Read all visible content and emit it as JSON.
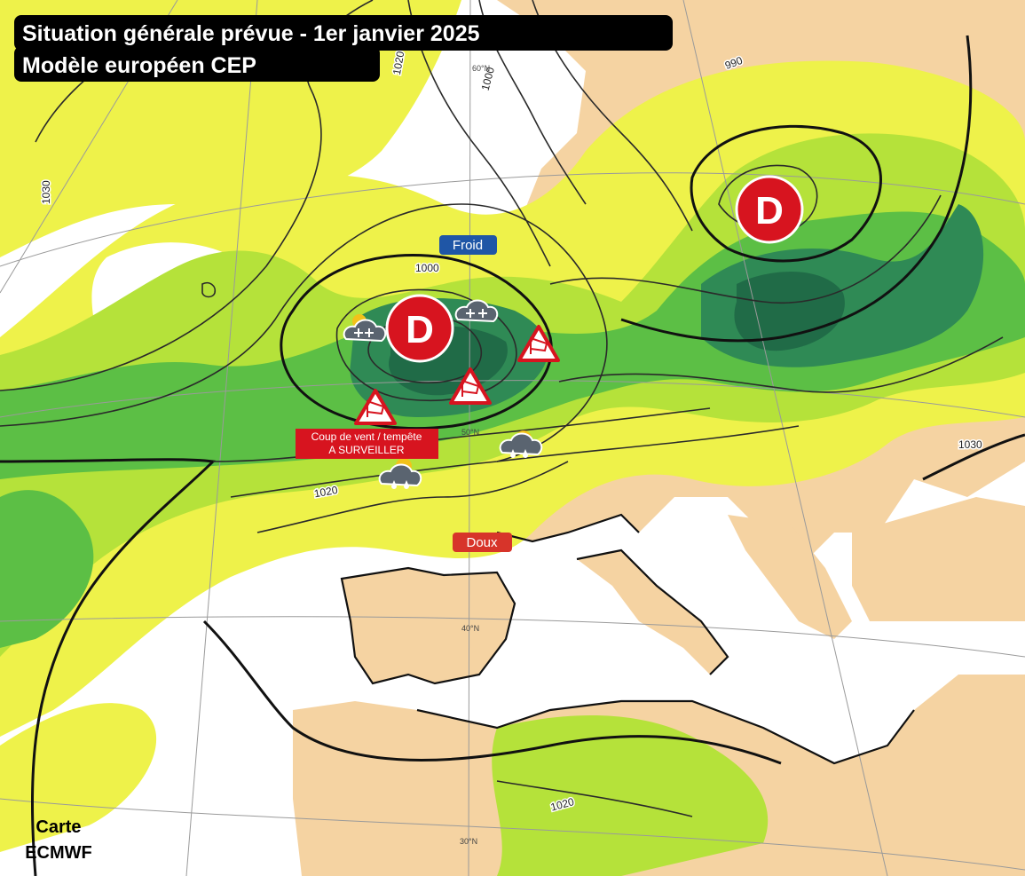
{
  "header": {
    "title": "Situation générale prévue - 1er janvier 2025",
    "subtitle": "Modèle européen CEP"
  },
  "air_masses": {
    "cold": "Froid",
    "mild": "Doux"
  },
  "lows": [
    "D",
    "D"
  ],
  "warning": {
    "line1": "Coup de vent / tempête",
    "line2": "A SURVEILLER"
  },
  "isobars": [
    "1020",
    "1000",
    "990",
    "1030",
    "1000",
    "1020",
    "1030",
    "1020"
  ],
  "latitudes": [
    "60°N",
    "50°N",
    "40°N",
    "30°N"
  ],
  "footer": {
    "line1": "Carte",
    "line2": "ECMWF"
  }
}
